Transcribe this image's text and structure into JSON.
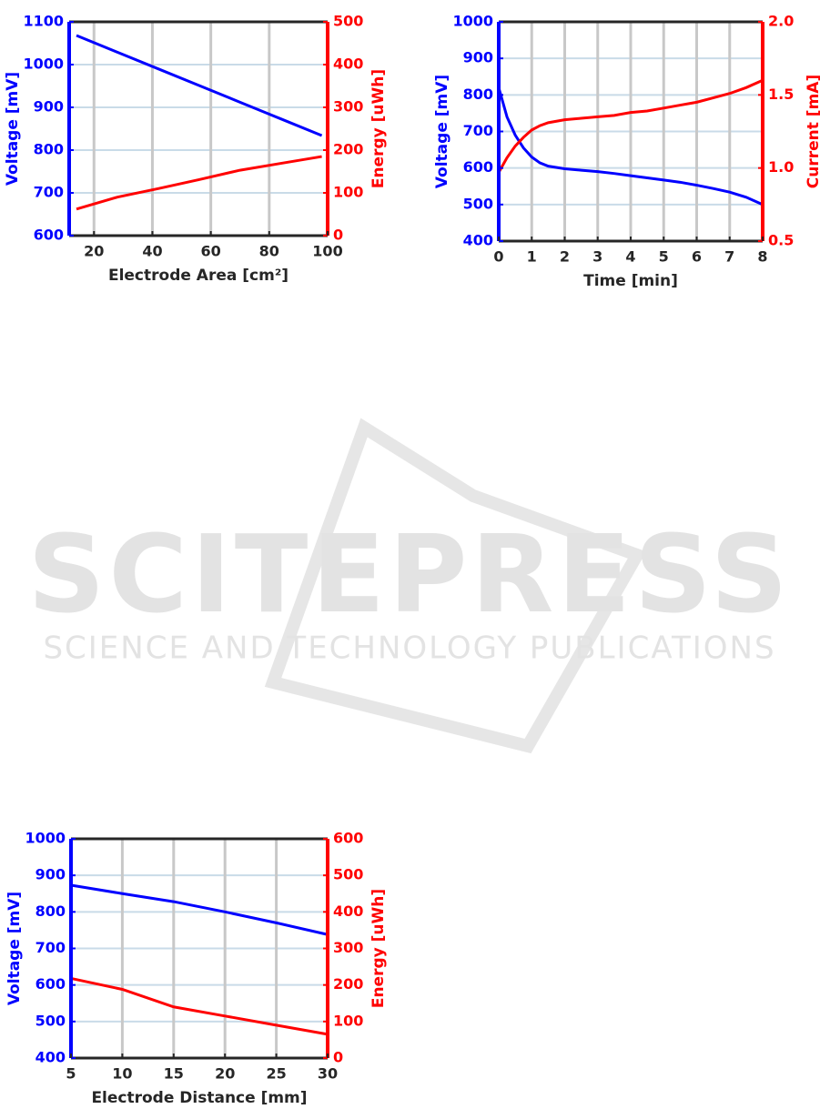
{
  "watermark": {
    "title": "SCITEPRESS",
    "subtitle": "SCIENCE AND TECHNOLOGY PUBLICATIONS"
  },
  "chart_data": [
    {
      "type": "line",
      "xlabel": "Electrode Area [cm²]",
      "ylabel": "Voltage [mV]",
      "y2label": "Energy [uWh]",
      "x": [
        14,
        28,
        42,
        56,
        70,
        84,
        98
      ],
      "series": [
        {
          "name": "Voltage",
          "color": "#0000ff",
          "values": [
            1068,
            1029,
            990,
            951,
            912,
            873,
            834
          ]
        },
        {
          "name": "Energy",
          "color": "#ff0000",
          "axis": "y2",
          "values": [
            62,
            90,
            110,
            131,
            153,
            169,
            185
          ]
        }
      ],
      "xlim": [
        11.5,
        100
      ],
      "xticks": [
        20,
        40,
        60,
        80,
        100
      ],
      "ylim": [
        600,
        1100
      ],
      "yticks": [
        600,
        700,
        800,
        900,
        1000,
        1100
      ],
      "y2lim": [
        0,
        500
      ],
      "y2ticks": [
        0,
        100,
        200,
        300,
        400,
        500
      ],
      "grid": true
    },
    {
      "type": "line",
      "xlabel": "Time [min]",
      "ylabel": "Voltage [mV]",
      "y2label": "Current [mA]",
      "x": [
        0,
        0.25,
        0.5,
        0.75,
        1,
        1.25,
        1.5,
        2,
        2.5,
        3,
        3.5,
        4,
        4.5,
        5,
        5.5,
        6,
        6.5,
        7,
        7.5,
        8
      ],
      "series": [
        {
          "name": "Voltage",
          "color": "#0000ff",
          "values": [
            820,
            740,
            690,
            655,
            630,
            614,
            605,
            598,
            594,
            590,
            585,
            579,
            573,
            567,
            561,
            553,
            544,
            534,
            520,
            500
          ]
        },
        {
          "name": "Current",
          "color": "#ff0000",
          "axis": "y2",
          "values": [
            0.97,
            1.07,
            1.15,
            1.21,
            1.26,
            1.29,
            1.31,
            1.33,
            1.34,
            1.35,
            1.36,
            1.38,
            1.39,
            1.41,
            1.43,
            1.45,
            1.48,
            1.51,
            1.55,
            1.6
          ]
        }
      ],
      "xlim": [
        0,
        8
      ],
      "xticks": [
        0,
        1,
        2,
        3,
        4,
        5,
        6,
        7,
        8
      ],
      "ylim": [
        400,
        1000
      ],
      "yticks": [
        400,
        500,
        600,
        700,
        800,
        900,
        1000
      ],
      "y2lim": [
        0.5,
        2
      ],
      "y2ticks": [
        0.5,
        {
          "value": 1,
          "label": "1.0"
        },
        1.5,
        {
          "value": 2,
          "label": "2.0"
        }
      ],
      "grid": true
    },
    {
      "type": "line",
      "xlabel": "Electrode Distance [mm]",
      "ylabel": "Voltage [mV]",
      "y2label": "Energy [uWh]",
      "x": [
        5,
        10,
        15,
        20,
        25,
        30
      ],
      "series": [
        {
          "name": "Voltage",
          "color": "#0000ff",
          "values": [
            873,
            850,
            828,
            800,
            770,
            738
          ]
        },
        {
          "name": "Energy",
          "color": "#ff0000",
          "axis": "y2",
          "values": [
            218,
            188,
            140,
            115,
            90,
            65
          ]
        }
      ],
      "xlim": [
        5,
        30
      ],
      "xticks": [
        5,
        10,
        15,
        20,
        25,
        30
      ],
      "ylim": [
        400,
        1000
      ],
      "yticks": [
        400,
        500,
        600,
        700,
        800,
        900,
        1000
      ],
      "y2lim": [
        0,
        600
      ],
      "y2ticks": [
        0,
        100,
        200,
        300,
        400,
        500,
        600
      ],
      "grid": true
    }
  ]
}
